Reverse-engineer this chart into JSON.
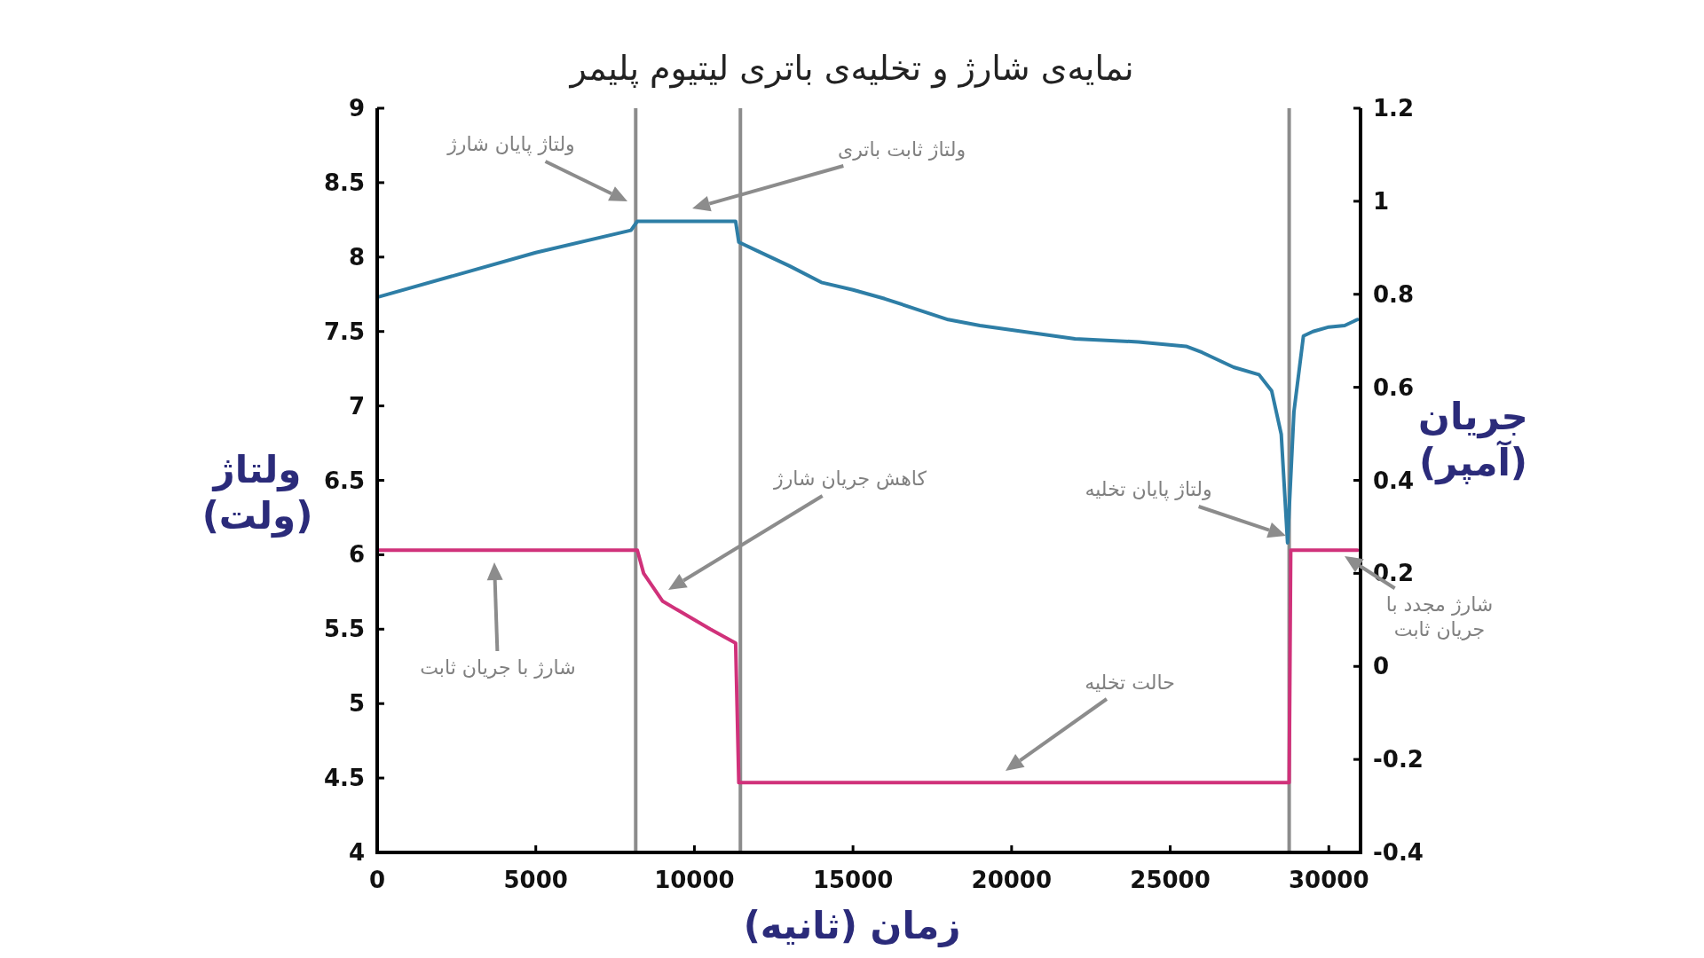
{
  "chart_data": {
    "type": "line",
    "title": "نمایه‌ی شارژ و تخلیه‌ی باتری لیتیوم پلیمر",
    "xlabel": "زمان (ثانیه)",
    "ylabel": "ولتاژ (ولت)",
    "y2label": "جریان (آمپر)",
    "series": [
      {
        "color": "#2e7ea6",
        "x": [
          0,
          5000,
          8000,
          8200,
          11300,
          11400,
          12000,
          13000,
          14000,
          15000,
          16000,
          17000,
          18000,
          19000,
          20000,
          22000,
          24000,
          25500,
          26000,
          27000,
          27800,
          28200,
          28500,
          28700,
          28900,
          29200,
          29500,
          30000,
          30500,
          30900
        ],
        "values": [
          7.73,
          8.03,
          8.18,
          8.24,
          8.24,
          8.1,
          8.04,
          7.94,
          7.83,
          7.78,
          7.72,
          7.65,
          7.58,
          7.54,
          7.51,
          7.45,
          7.43,
          7.4,
          7.36,
          7.26,
          7.21,
          7.1,
          6.81,
          6.08,
          6.96,
          7.47,
          7.5,
          7.53,
          7.54,
          7.58
        ]
      },
      {
        "color": "#d0317a",
        "axis": "y2",
        "x": [
          0,
          8200,
          8400,
          9000,
          9500,
          10500,
          11300,
          11400,
          28750,
          28800,
          30900
        ],
        "values": [
          0.25,
          0.25,
          0.2,
          0.14,
          0.12,
          0.08,
          0.05,
          -0.25,
          -0.25,
          0.25,
          0.25
        ]
      }
    ],
    "xlim": [
      0,
      31000
    ],
    "xticks": [
      0,
      5000,
      10000,
      15000,
      20000,
      25000,
      30000
    ],
    "ylim": [
      4,
      9
    ],
    "yticks": [
      4,
      4.5,
      5,
      5.5,
      6,
      6.5,
      7,
      7.5,
      8,
      8.5,
      9
    ],
    "y2lim": [
      -0.4,
      1.2
    ],
    "y2ticks": [
      -0.4,
      -0.2,
      0,
      0.2,
      0.4,
      0.6,
      0.8,
      1,
      1.2
    ],
    "ref_lines": [
      {
        "axis": "x",
        "value": 8150,
        "color": "#8c8c8c"
      },
      {
        "axis": "x",
        "value": 11450,
        "color": "#8c8c8c"
      },
      {
        "axis": "x",
        "value": 28750,
        "color": "#8c8c8c"
      }
    ],
    "annotations": [
      "ولتاژ پایان شارژ",
      "ولتاژ ثابت باتری",
      "کاهش جریان شارژ",
      "ولتاژ پایان تخلیه",
      "شارژ مجدد با جریان ثابت",
      "حالت تخلیه",
      "شارژ با جریان ثابت"
    ]
  }
}
